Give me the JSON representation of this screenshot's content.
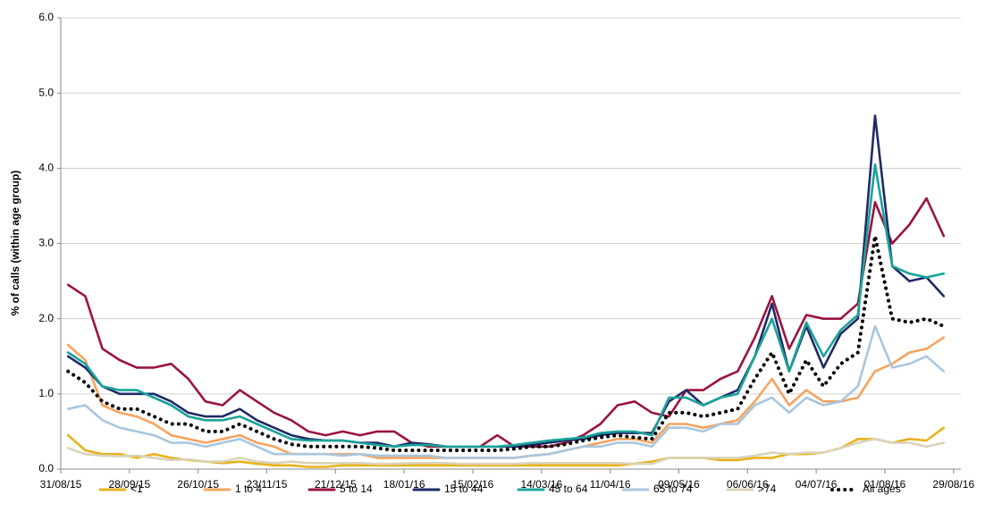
{
  "chart_data": {
    "type": "line",
    "y_label": "% of calls (within age group)",
    "x": [
      "2015-09-03",
      "2015-09-10",
      "2015-09-17",
      "2015-09-24",
      "2015-10-01",
      "2015-10-08",
      "2015-10-15",
      "2015-10-22",
      "2015-10-29",
      "2015-11-05",
      "2015-11-12",
      "2015-11-19",
      "2015-11-26",
      "2015-12-03",
      "2015-12-10",
      "2015-12-17",
      "2015-12-24",
      "2015-12-31",
      "2016-01-07",
      "2016-01-14",
      "2016-01-21",
      "2016-01-28",
      "2016-02-04",
      "2016-02-11",
      "2016-02-18",
      "2016-02-25",
      "2016-03-03",
      "2016-03-10",
      "2016-03-17",
      "2016-03-24",
      "2016-03-31",
      "2016-04-07",
      "2016-04-14",
      "2016-04-21",
      "2016-04-28",
      "2016-05-05",
      "2016-05-12",
      "2016-05-19",
      "2016-05-26",
      "2016-06-02",
      "2016-06-09",
      "2016-06-16",
      "2016-06-23",
      "2016-06-30",
      "2016-07-07",
      "2016-07-14",
      "2016-07-21",
      "2016-07-28",
      "2016-08-04",
      "2016-08-11",
      "2016-08-18",
      "2016-08-25"
    ],
    "xlim": [
      "2015-08-31",
      "2016-09-01"
    ],
    "xticks": [
      {
        "value": "2015-08-31",
        "label": "31/08/15"
      },
      {
        "value": "2015-09-28",
        "label": "28/09/15"
      },
      {
        "value": "2015-10-26",
        "label": "26/10/15"
      },
      {
        "value": "2015-11-23",
        "label": "23/11/15"
      },
      {
        "value": "2015-12-21",
        "label": "21/12/15"
      },
      {
        "value": "2016-01-18",
        "label": "18/01/16"
      },
      {
        "value": "2016-02-15",
        "label": "15/02/16"
      },
      {
        "value": "2016-03-14",
        "label": "14/03/16"
      },
      {
        "value": "2016-04-11",
        "label": "11/04/16"
      },
      {
        "value": "2016-05-09",
        "label": "09/05/16"
      },
      {
        "value": "2016-06-06",
        "label": "06/06/16"
      },
      {
        "value": "2016-07-04",
        "label": "04/07/16"
      },
      {
        "value": "2016-08-01",
        "label": "01/08/16"
      },
      {
        "value": "2016-08-29",
        "label": "29/08/16"
      }
    ],
    "ylim": [
      0,
      6
    ],
    "yticks": [
      {
        "value": 0,
        "label": "0.0"
      },
      {
        "value": 1,
        "label": "1.0"
      },
      {
        "value": 2,
        "label": "2.0"
      },
      {
        "value": 3,
        "label": "3.0"
      },
      {
        "value": 4,
        "label": "4.0"
      },
      {
        "value": 5,
        "label": "5.0"
      },
      {
        "value": 6,
        "label": "6.0"
      }
    ],
    "grid": true,
    "legend": "bottom",
    "series": [
      {
        "name": "<1",
        "color": "#e8b21c",
        "values": [
          0.45,
          0.25,
          0.2,
          0.2,
          0.15,
          0.2,
          0.15,
          0.12,
          0.1,
          0.08,
          0.1,
          0.07,
          0.05,
          0.05,
          0.03,
          0.03,
          0.05,
          0.05,
          0.05,
          0.05,
          0.05,
          0.05,
          0.05,
          0.05,
          0.05,
          0.05,
          0.05,
          0.05,
          0.05,
          0.05,
          0.05,
          0.05,
          0.05,
          0.07,
          0.1,
          0.15,
          0.15,
          0.15,
          0.12,
          0.12,
          0.15,
          0.15,
          0.2,
          0.2,
          0.22,
          0.28,
          0.4,
          0.4,
          0.35,
          0.4,
          0.38,
          0.55
        ]
      },
      {
        "name": "1 to 4",
        "color": "#f5a35f",
        "values": [
          1.65,
          1.45,
          0.85,
          0.75,
          0.7,
          0.6,
          0.45,
          0.4,
          0.35,
          0.4,
          0.45,
          0.35,
          0.3,
          0.2,
          0.2,
          0.2,
          0.2,
          0.2,
          0.15,
          0.15,
          0.15,
          0.15,
          0.15,
          0.15,
          0.15,
          0.15,
          0.15,
          0.18,
          0.2,
          0.25,
          0.3,
          0.35,
          0.4,
          0.4,
          0.35,
          0.6,
          0.6,
          0.55,
          0.6,
          0.65,
          0.9,
          1.2,
          0.85,
          1.05,
          0.9,
          0.9,
          0.95,
          1.3,
          1.4,
          1.55,
          1.6,
          1.75
        ]
      },
      {
        "name": "5 to 14",
        "color": "#9b1440",
        "values": [
          2.45,
          2.3,
          1.6,
          1.45,
          1.35,
          1.35,
          1.4,
          1.2,
          0.9,
          0.85,
          1.05,
          0.9,
          0.75,
          0.65,
          0.5,
          0.45,
          0.5,
          0.45,
          0.5,
          0.5,
          0.35,
          0.3,
          0.3,
          0.3,
          0.3,
          0.45,
          0.3,
          0.3,
          0.3,
          0.35,
          0.45,
          0.6,
          0.85,
          0.9,
          0.75,
          0.7,
          1.05,
          1.05,
          1.2,
          1.3,
          1.75,
          2.3,
          1.6,
          2.05,
          2.0,
          2.0,
          2.2,
          3.55,
          3.0,
          3.25,
          3.6,
          3.1
        ]
      },
      {
        "name": "15 to 44",
        "color": "#1f2a66",
        "values": [
          1.5,
          1.35,
          1.1,
          1.0,
          1.0,
          1.0,
          0.9,
          0.75,
          0.7,
          0.7,
          0.8,
          0.65,
          0.55,
          0.45,
          0.4,
          0.38,
          0.38,
          0.35,
          0.35,
          0.3,
          0.35,
          0.33,
          0.3,
          0.3,
          0.3,
          0.3,
          0.3,
          0.32,
          0.35,
          0.38,
          0.4,
          0.45,
          0.48,
          0.48,
          0.48,
          0.9,
          1.05,
          0.85,
          0.95,
          1.05,
          1.5,
          2.2,
          1.3,
          1.9,
          1.35,
          1.8,
          2.0,
          4.7,
          2.7,
          2.5,
          2.55,
          2.3
        ]
      },
      {
        "name": "45 to 64",
        "color": "#1aa39a",
        "values": [
          1.55,
          1.4,
          1.1,
          1.05,
          1.05,
          0.95,
          0.85,
          0.7,
          0.65,
          0.65,
          0.7,
          0.6,
          0.5,
          0.4,
          0.38,
          0.38,
          0.38,
          0.35,
          0.32,
          0.3,
          0.32,
          0.32,
          0.3,
          0.3,
          0.3,
          0.3,
          0.32,
          0.35,
          0.38,
          0.4,
          0.42,
          0.48,
          0.5,
          0.5,
          0.45,
          0.95,
          0.95,
          0.85,
          0.95,
          1.0,
          1.5,
          2.0,
          1.3,
          1.95,
          1.5,
          1.85,
          2.05,
          4.05,
          2.7,
          2.6,
          2.55,
          2.6
        ]
      },
      {
        "name": "65 to 74",
        "color": "#a9c6de",
        "values": [
          0.8,
          0.85,
          0.65,
          0.55,
          0.5,
          0.45,
          0.35,
          0.35,
          0.3,
          0.35,
          0.4,
          0.3,
          0.2,
          0.2,
          0.2,
          0.2,
          0.18,
          0.2,
          0.18,
          0.18,
          0.18,
          0.18,
          0.15,
          0.15,
          0.15,
          0.15,
          0.15,
          0.18,
          0.2,
          0.25,
          0.3,
          0.3,
          0.35,
          0.35,
          0.3,
          0.55,
          0.55,
          0.5,
          0.6,
          0.6,
          0.85,
          0.95,
          0.75,
          0.95,
          0.85,
          0.9,
          1.1,
          1.9,
          1.35,
          1.4,
          1.5,
          1.3
        ]
      },
      {
        "name": ">74",
        "color": "#d9d4b8",
        "values": [
          0.28,
          0.2,
          0.18,
          0.17,
          0.18,
          0.15,
          0.12,
          0.13,
          0.1,
          0.1,
          0.15,
          0.1,
          0.08,
          0.1,
          0.08,
          0.08,
          0.08,
          0.08,
          0.07,
          0.07,
          0.08,
          0.08,
          0.08,
          0.07,
          0.07,
          0.07,
          0.07,
          0.08,
          0.08,
          0.08,
          0.08,
          0.08,
          0.08,
          0.07,
          0.07,
          0.15,
          0.15,
          0.15,
          0.15,
          0.15,
          0.18,
          0.22,
          0.2,
          0.22,
          0.22,
          0.28,
          0.35,
          0.4,
          0.35,
          0.35,
          0.3,
          0.35
        ]
      },
      {
        "name": "All ages",
        "color": "#000000",
        "style": "dotted",
        "values": [
          1.3,
          1.15,
          0.9,
          0.8,
          0.8,
          0.7,
          0.6,
          0.6,
          0.5,
          0.5,
          0.6,
          0.5,
          0.4,
          0.33,
          0.3,
          0.3,
          0.3,
          0.3,
          0.28,
          0.25,
          0.25,
          0.25,
          0.25,
          0.25,
          0.25,
          0.25,
          0.27,
          0.3,
          0.3,
          0.33,
          0.38,
          0.42,
          0.45,
          0.42,
          0.4,
          0.75,
          0.75,
          0.7,
          0.75,
          0.8,
          1.2,
          1.55,
          1.0,
          1.45,
          1.1,
          1.4,
          1.55,
          3.1,
          2.0,
          1.95,
          2.0,
          1.9
        ]
      }
    ]
  }
}
